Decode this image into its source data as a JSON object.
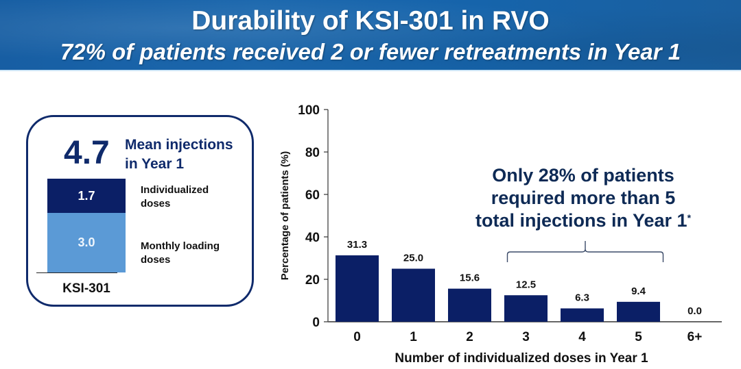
{
  "header": {
    "title": "Durability of KSI-301 in RVO",
    "subtitle": "72% of patients received 2 or fewer retreatments in Year 1"
  },
  "summary_card": {
    "mean_value": "4.7",
    "mean_label_line1": "Mean injections",
    "mean_label_line2": "in Year 1",
    "segments": [
      {
        "value": "1.7",
        "label_line1": "Individualized",
        "label_line2": "doses",
        "color": "#0b1f66"
      },
      {
        "value": "3.0",
        "label_line1": "Monthly loading",
        "label_line2": "doses",
        "color": "#5b9ad6"
      }
    ],
    "bar_label": "KSI-301",
    "border_color": "#0f2a6b"
  },
  "callout": {
    "line1": "Only 28% of patients",
    "line2": "required more than 5",
    "line3": "total injections in Year 1",
    "footnote_mark": "*"
  },
  "chart_data": {
    "type": "bar",
    "title": "",
    "xlabel": "Number of individualized doses in Year 1",
    "ylabel": "Percentage of patients (%)",
    "categories": [
      "0",
      "1",
      "2",
      "3",
      "4",
      "5",
      "6+"
    ],
    "values": [
      31.3,
      25.0,
      15.6,
      12.5,
      6.3,
      9.4,
      0.0
    ],
    "value_labels": [
      "31.3",
      "25.0",
      "15.6",
      "12.5",
      "6.3",
      "9.4",
      "0.0"
    ],
    "ylim": [
      0,
      100
    ],
    "yticks": [
      0,
      20,
      40,
      60,
      80,
      100
    ],
    "grid": false,
    "bar_color": "#0b1f66",
    "bracket_span": [
      "3",
      "5"
    ]
  }
}
